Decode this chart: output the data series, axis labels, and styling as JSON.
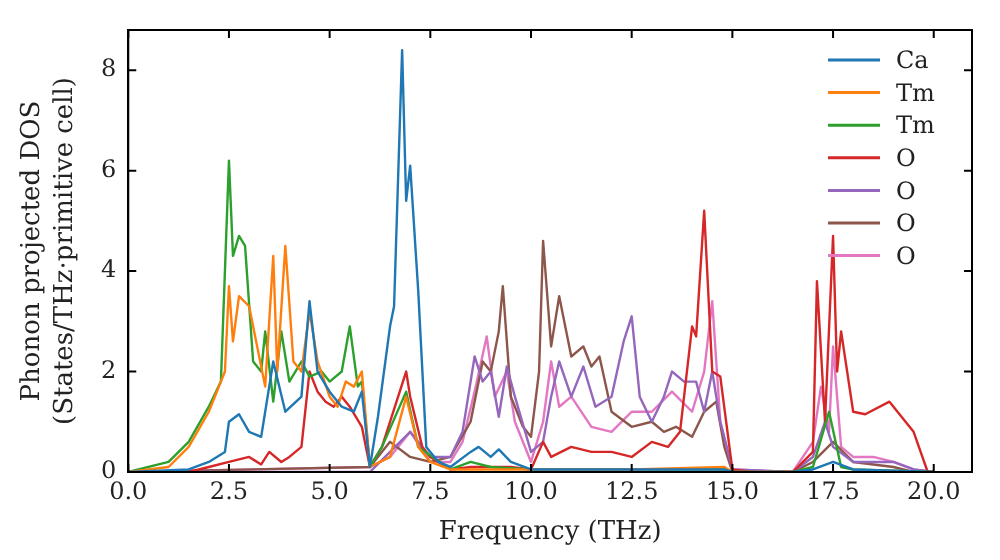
{
  "chart_data": {
    "type": "line",
    "xlabel": "Frequency (THz)",
    "ylabel": "Phonon projected DOS\n(States/THz·primitive cell)",
    "xlim": [
      0,
      20.95
    ],
    "ylim": [
      0,
      8.8
    ],
    "xticks": [
      {
        "value": 0,
        "label": "0.0"
      },
      {
        "value": 2.5,
        "label": "2.5"
      },
      {
        "value": 5,
        "label": "5.0"
      },
      {
        "value": 7.5,
        "label": "7.5"
      },
      {
        "value": 10,
        "label": "10.0"
      },
      {
        "value": 12.5,
        "label": "12.5"
      },
      {
        "value": 15,
        "label": "15.0"
      },
      {
        "value": 17.5,
        "label": "17.5"
      },
      {
        "value": 20,
        "label": "20.0"
      }
    ],
    "yticks": [
      0,
      2,
      4,
      6,
      8
    ],
    "grid": false,
    "legend": "top right",
    "marker": "none",
    "line_style": "solid",
    "series": [
      {
        "name": "Ca",
        "color": "#1f77b4",
        "x": [
          0,
          1.5,
          2.0,
          2.4,
          2.5,
          2.75,
          3.0,
          3.3,
          3.6,
          3.9,
          4.3,
          4.5,
          4.7,
          5.0,
          5.3,
          5.6,
          5.8,
          6.0,
          6.2,
          6.5,
          6.6,
          6.8,
          6.9,
          7.0,
          7.2,
          7.4,
          7.7,
          8.0,
          8.5,
          8.7,
          9.0,
          9.2,
          9.5,
          10.0,
          12.5,
          14.8,
          15.0,
          16.5,
          17.0,
          17.5,
          18.0,
          20.0
        ],
        "values": [
          0,
          0.05,
          0.2,
          0.4,
          1.0,
          1.15,
          0.8,
          0.7,
          2.2,
          1.2,
          1.5,
          3.4,
          2.0,
          1.6,
          1.3,
          1.2,
          1.6,
          0.1,
          1.1,
          2.9,
          3.3,
          8.4,
          5.4,
          6.1,
          3.6,
          0.5,
          0.2,
          0.1,
          0.4,
          0.5,
          0.3,
          0.45,
          0.2,
          0.05,
          0.05,
          0.05,
          0,
          0,
          0.05,
          0.2,
          0.05,
          0
        ]
      },
      {
        "name": "Tm",
        "color": "#ff7f0e",
        "x": [
          0,
          1.0,
          1.5,
          2.0,
          2.4,
          2.5,
          2.6,
          2.75,
          3.0,
          3.4,
          3.6,
          3.7,
          3.9,
          4.1,
          4.3,
          4.5,
          4.7,
          5.0,
          5.2,
          5.4,
          5.6,
          5.8,
          6.0,
          6.5,
          6.9,
          7.2,
          7.5,
          8.0,
          10.0,
          12.5,
          14.8,
          15.0,
          16.5
        ],
        "values": [
          0,
          0.1,
          0.5,
          1.2,
          2.0,
          3.7,
          2.6,
          3.5,
          3.3,
          1.7,
          4.3,
          2.0,
          4.5,
          2.2,
          2.0,
          3.2,
          2.2,
          1.5,
          1.3,
          1.8,
          1.7,
          2.0,
          0.1,
          0.3,
          1.5,
          0.5,
          0.2,
          0.05,
          0.05,
          0.05,
          0.1,
          0,
          0
        ]
      },
      {
        "name": "Tm",
        "color": "#2ca02c",
        "x": [
          0,
          1.0,
          1.5,
          2.0,
          2.3,
          2.5,
          2.6,
          2.75,
          2.9,
          3.1,
          3.3,
          3.4,
          3.6,
          3.8,
          4.0,
          4.3,
          4.5,
          4.8,
          5.0,
          5.3,
          5.5,
          5.7,
          5.8,
          6.0,
          6.3,
          6.9,
          7.2,
          8.0,
          8.5,
          9.0,
          10.0,
          12.5,
          14.8,
          15.0,
          16.5,
          17.0,
          17.4,
          17.7,
          18.0,
          20.0
        ],
        "values": [
          0,
          0.2,
          0.6,
          1.3,
          1.8,
          6.2,
          4.3,
          4.7,
          4.5,
          2.2,
          2.0,
          2.8,
          1.4,
          2.8,
          1.8,
          2.2,
          1.9,
          2.0,
          1.8,
          2.0,
          2.9,
          1.7,
          1.8,
          0.1,
          0.5,
          1.6,
          0.5,
          0.05,
          0.2,
          0.1,
          0.05,
          0.05,
          0.05,
          0,
          0,
          0.1,
          1.2,
          0.1,
          0.05,
          0
        ]
      },
      {
        "name": "O",
        "color": "#d62728",
        "x": [
          0,
          1.5,
          2.0,
          2.5,
          3.0,
          3.3,
          3.5,
          3.8,
          4.0,
          4.3,
          4.5,
          4.7,
          4.9,
          5.1,
          5.3,
          5.5,
          5.8,
          6.0,
          6.3,
          6.9,
          7.0,
          7.3,
          7.5,
          8.0,
          8.5,
          9.0,
          9.5,
          10.0,
          10.3,
          10.5,
          11.0,
          11.5,
          12.0,
          12.5,
          13.0,
          13.4,
          13.7,
          14.0,
          14.1,
          14.3,
          14.5,
          14.7,
          15.0,
          15.5,
          16.5,
          17.0,
          17.1,
          17.3,
          17.5,
          17.6,
          17.7,
          18.0,
          18.3,
          18.9,
          19.3,
          19.5,
          19.85,
          20.0
        ],
        "values": [
          0,
          0,
          0.1,
          0.2,
          0.3,
          0.15,
          0.4,
          0.2,
          0.3,
          0.5,
          2.0,
          1.6,
          1.4,
          1.3,
          1.5,
          1.3,
          0.9,
          0.1,
          0.5,
          2.0,
          1.5,
          0.5,
          0.3,
          0.05,
          0.1,
          0.1,
          0.1,
          0.05,
          0.6,
          0.3,
          0.5,
          0.4,
          0.4,
          0.3,
          0.6,
          0.5,
          0.8,
          2.9,
          2.7,
          5.2,
          2.0,
          1.9,
          0.05,
          0,
          0,
          0.4,
          3.8,
          1.0,
          4.7,
          2.0,
          2.8,
          1.2,
          1.15,
          1.4,
          1.0,
          0.8,
          0,
          0
        ]
      },
      {
        "name": "O",
        "color": "#9467bd",
        "x": [
          0,
          6.0,
          6.5,
          7.0,
          7.5,
          8.0,
          8.3,
          8.6,
          8.8,
          9.0,
          9.2,
          9.4,
          9.6,
          10.0,
          10.3,
          10.5,
          10.7,
          11.0,
          11.3,
          11.6,
          12.0,
          12.3,
          12.5,
          12.7,
          13.0,
          13.3,
          13.5,
          13.8,
          14.1,
          14.3,
          14.5,
          14.7,
          15.0,
          16.5,
          17.0,
          17.3,
          17.5,
          18.0,
          18.5,
          19.0,
          19.5,
          20.0
        ],
        "values": [
          0,
          0,
          0.4,
          0.8,
          0.3,
          0.3,
          0.8,
          2.3,
          1.8,
          2.0,
          1.1,
          2.1,
          1.5,
          0.4,
          0.6,
          1.5,
          2.2,
          1.5,
          2.1,
          1.3,
          1.5,
          2.6,
          3.1,
          1.5,
          1.0,
          1.5,
          2.0,
          1.8,
          1.8,
          1.2,
          2.0,
          1.0,
          0.05,
          0,
          0.3,
          1.0,
          0.5,
          0.2,
          0.2,
          0.2,
          0.05,
          0
        ]
      },
      {
        "name": "O",
        "color": "#8c564b",
        "x": [
          0,
          6.0,
          6.5,
          7.0,
          7.5,
          8.0,
          8.5,
          8.8,
          9.0,
          9.2,
          9.3,
          9.5,
          9.8,
          10.0,
          10.2,
          10.3,
          10.5,
          10.7,
          11.0,
          11.3,
          11.5,
          11.7,
          12.0,
          12.5,
          13.0,
          13.3,
          13.6,
          14.0,
          14.3,
          14.6,
          14.8,
          15.0,
          16.5,
          17.0,
          17.5,
          18.0,
          19.0,
          19.5,
          20.0
        ],
        "values": [
          0,
          0.1,
          0.6,
          0.3,
          0.2,
          0.3,
          1.0,
          2.2,
          2.0,
          2.8,
          3.7,
          1.5,
          0.9,
          0.7,
          2.0,
          4.6,
          2.5,
          3.5,
          2.3,
          2.5,
          2.1,
          2.3,
          1.2,
          0.9,
          1.0,
          0.8,
          0.9,
          0.7,
          1.2,
          1.4,
          0.5,
          0,
          0,
          0.2,
          0.6,
          0.2,
          0.1,
          0,
          0
        ]
      },
      {
        "name": "O",
        "color": "#e377c2",
        "x": [
          0,
          6.0,
          6.5,
          7.0,
          7.5,
          8.0,
          8.3,
          8.6,
          8.9,
          9.1,
          9.4,
          9.6,
          10.0,
          10.3,
          10.5,
          10.7,
          11.0,
          11.5,
          12.0,
          12.5,
          13.0,
          13.5,
          14.0,
          14.3,
          14.5,
          14.7,
          15.0,
          16.5,
          17.0,
          17.2,
          17.4,
          17.5,
          17.7,
          18.0,
          18.5,
          19.0,
          19.5,
          20.0
        ],
        "values": [
          0,
          0.1,
          0.3,
          0.8,
          0.2,
          0.2,
          0.6,
          1.6,
          2.7,
          1.5,
          2.0,
          1.0,
          0.2,
          1.0,
          2.2,
          1.3,
          1.5,
          0.9,
          0.8,
          1.2,
          1.2,
          1.6,
          1.2,
          2.0,
          3.4,
          1.0,
          0.05,
          0,
          0.6,
          1.7,
          0.8,
          2.5,
          0.5,
          0.3,
          0.3,
          0.2,
          0.05,
          0
        ]
      }
    ]
  }
}
